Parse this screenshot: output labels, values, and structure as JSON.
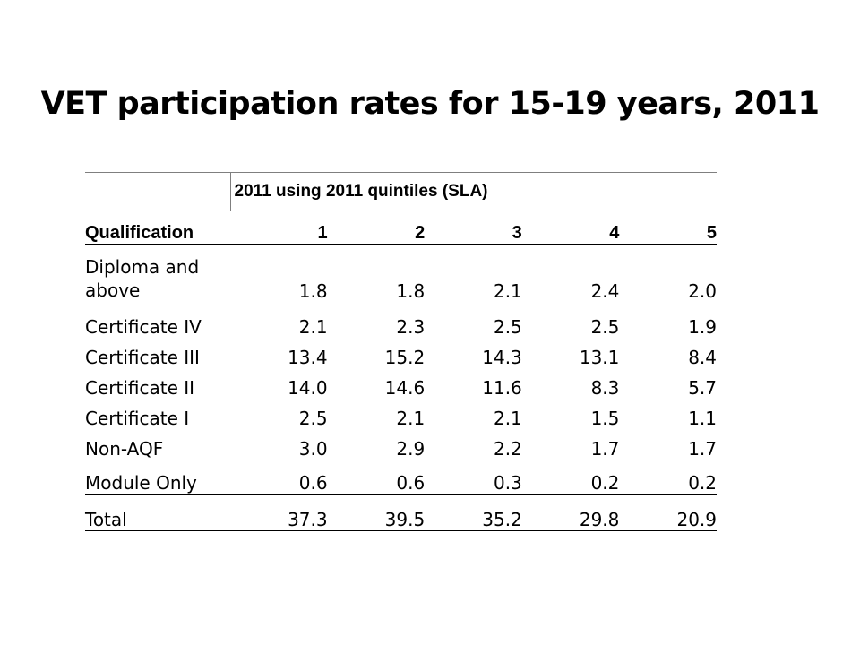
{
  "title": "VET participation rates for 15-19 years, 2011",
  "table": {
    "span_header": "2011 using 2011 quintiles (SLA)",
    "columns": [
      "Qualification",
      "1",
      "2",
      "3",
      "4",
      "5"
    ],
    "rows": [
      {
        "label": "Diploma and above",
        "values": [
          "1.8",
          "1.8",
          "2.1",
          "2.4",
          "2.0"
        ]
      },
      {
        "label": "Certificate IV",
        "values": [
          "2.1",
          "2.3",
          "2.5",
          "2.5",
          "1.9"
        ]
      },
      {
        "label": "Certificate III",
        "values": [
          "13.4",
          "15.2",
          "14.3",
          "13.1",
          "8.4"
        ]
      },
      {
        "label": "Certificate II",
        "values": [
          "14.0",
          "14.6",
          "11.6",
          "8.3",
          "5.7"
        ]
      },
      {
        "label": "Certificate I",
        "values": [
          "2.5",
          "2.1",
          "2.1",
          "1.5",
          "1.1"
        ]
      },
      {
        "label": "Non-AQF",
        "values": [
          "3.0",
          "2.9",
          "2.2",
          "1.7",
          "1.7"
        ]
      },
      {
        "label": "Module Only",
        "values": [
          "0.6",
          "0.6",
          "0.3",
          "0.2",
          "0.2"
        ]
      },
      {
        "label": "Total",
        "values": [
          "37.3",
          "39.5",
          "35.2",
          "29.8",
          "20.9"
        ]
      }
    ]
  }
}
